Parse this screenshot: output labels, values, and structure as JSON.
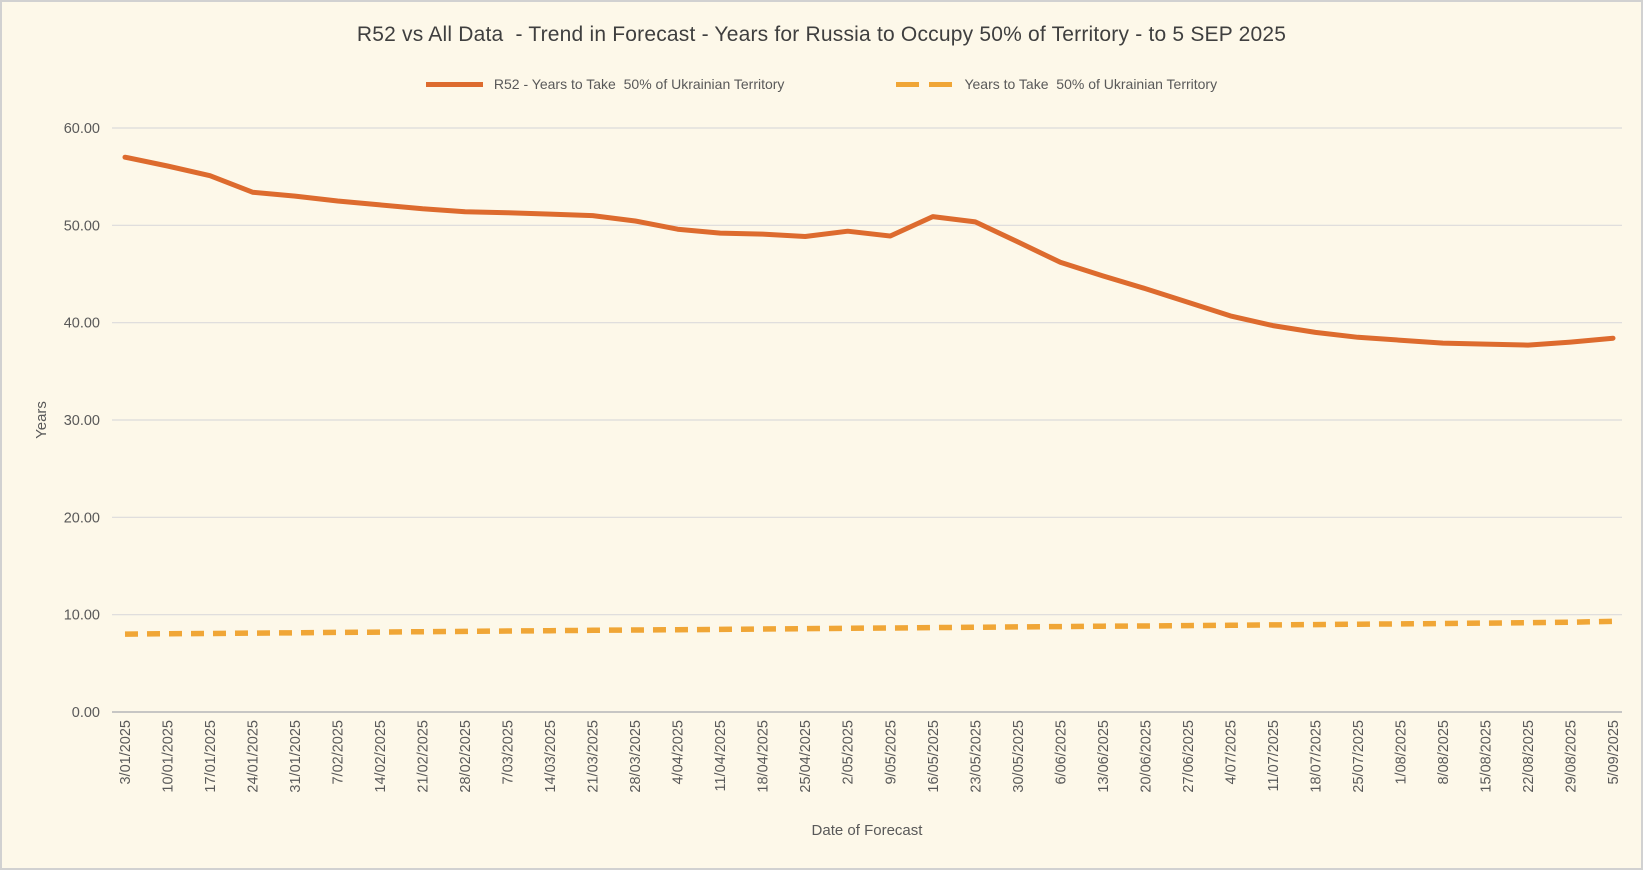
{
  "chart_data": {
    "type": "line",
    "title": "R52 vs All Data  - Trend in Forecast - Years for Russia to Occupy 50% of Territory - to 5 SEP 2025",
    "xlabel": "Date of Forecast",
    "ylabel": "Years",
    "ylim": [
      0,
      60
    ],
    "y_ticks": [
      "60.00",
      "50.00",
      "40.00",
      "30.00",
      "20.00",
      "10.00",
      "0.00"
    ],
    "categories": [
      "3/01/2025",
      "10/01/2025",
      "17/01/2025",
      "24/01/2025",
      "31/01/2025",
      "7/02/2025",
      "14/02/2025",
      "21/02/2025",
      "28/02/2025",
      "7/03/2025",
      "14/03/2025",
      "21/03/2025",
      "28/03/2025",
      "4/04/2025",
      "11/04/2025",
      "18/04/2025",
      "25/04/2025",
      "2/05/2025",
      "9/05/2025",
      "16/05/2025",
      "23/05/2025",
      "30/05/2025",
      "6/06/2025",
      "13/06/2025",
      "20/06/2025",
      "27/06/2025",
      "4/07/2025",
      "11/07/2025",
      "18/07/2025",
      "25/07/2025",
      "1/08/2025",
      "8/08/2025",
      "15/08/2025",
      "22/08/2025",
      "29/08/2025",
      "5/09/2025"
    ],
    "series": [
      {
        "name": "R52 - Years to Take  50% of Ukrainian Territory",
        "style": "solid",
        "color": "#DD6B2E",
        "values": [
          57.0,
          56.1,
          55.1,
          53.4,
          53.0,
          52.5,
          52.1,
          51.7,
          51.4,
          51.3,
          51.15,
          51.0,
          50.45,
          49.6,
          49.2,
          49.1,
          48.85,
          49.4,
          48.9,
          50.9,
          50.35,
          48.3,
          46.2,
          44.8,
          43.5,
          42.1,
          40.7,
          39.7,
          39.0,
          38.5,
          38.2,
          37.9,
          37.8,
          37.7,
          38.0,
          38.4
        ]
      },
      {
        "name": "Years to Take  50% of Ukrainian Territory",
        "style": "dashed",
        "color": "#F0A636",
        "values": [
          8.0,
          8.04,
          8.07,
          8.11,
          8.14,
          8.18,
          8.21,
          8.25,
          8.28,
          8.32,
          8.35,
          8.39,
          8.42,
          8.46,
          8.49,
          8.53,
          8.56,
          8.6,
          8.63,
          8.67,
          8.7,
          8.74,
          8.77,
          8.81,
          8.84,
          8.88,
          8.91,
          8.95,
          8.98,
          9.02,
          9.05,
          9.09,
          9.13,
          9.17,
          9.23,
          9.32
        ]
      }
    ],
    "legend_position": "top",
    "grid": true,
    "background_color": "#FDF8E9",
    "border_color": "#D1D1D1",
    "grid_color": "#DBDBDB",
    "axis_line_color": "#BFBFBF",
    "tick_text_color": "#595959",
    "title_color": "#3F3F3F"
  }
}
